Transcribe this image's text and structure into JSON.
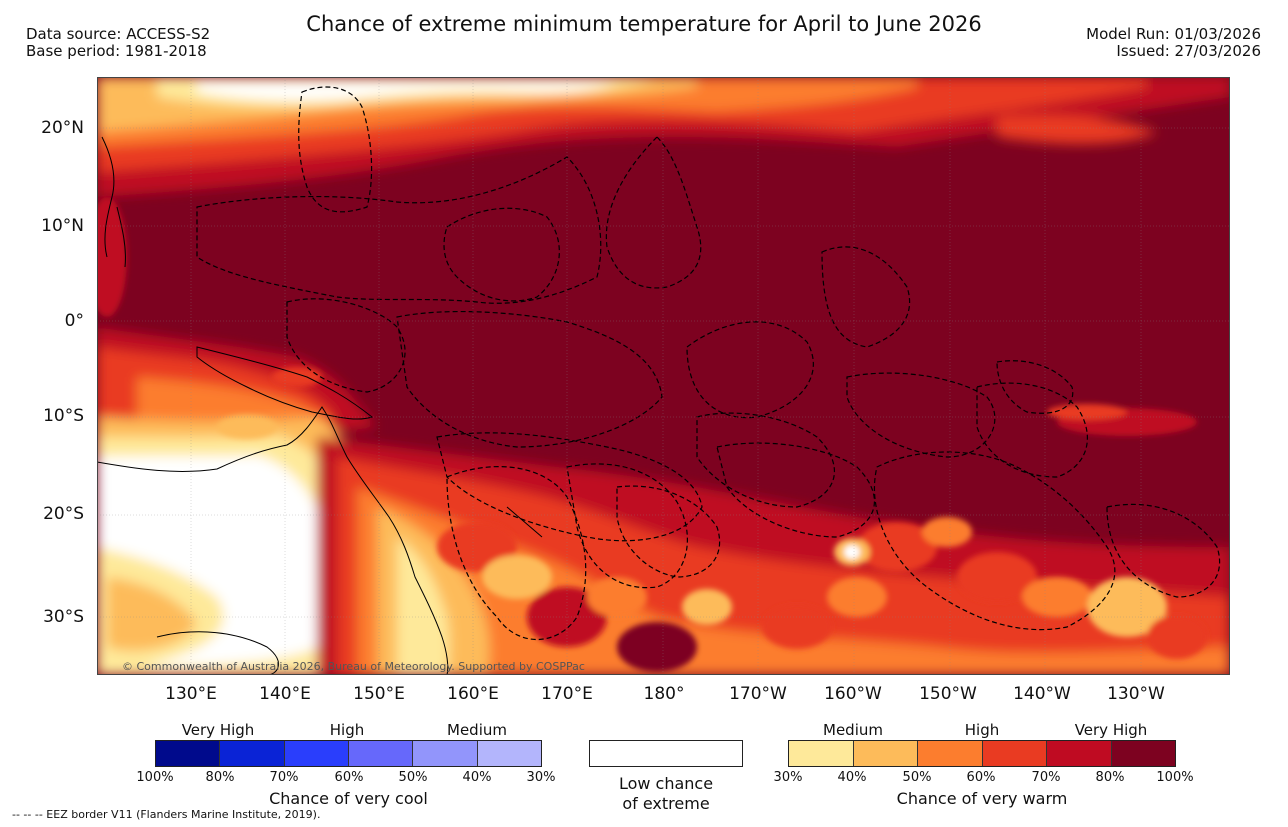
{
  "header": {
    "title": "Chance of extreme minimum temperature for April to June 2026",
    "data_source": "Data source: ACCESS-S2",
    "base_period": "Base period: 1981-2018",
    "model_run": "Model Run: 01/03/2026",
    "issued": "Issued: 27/03/2026"
  },
  "map": {
    "copyright": "© Commonwealth of Australia 2026, Bureau of Meteorology. Supported by COSPPac",
    "lat_labels": [
      "20°N",
      "10°N",
      "0°",
      "10°S",
      "20°S",
      "30°S"
    ],
    "lon_labels": [
      "130°E",
      "140°E",
      "150°E",
      "160°E",
      "170°E",
      "180°",
      "170°W",
      "160°W",
      "150°W",
      "140°W",
      "130°W"
    ]
  },
  "legend": {
    "cool": {
      "levels": [
        "Very High",
        "High",
        "Medium"
      ],
      "ticks": [
        "100%",
        "80%",
        "70%",
        "60%",
        "50%",
        "40%",
        "30%"
      ],
      "caption": "Chance of very cool",
      "colors": [
        "#000a8c",
        "#0a23d6",
        "#2a3efc",
        "#6668fb",
        "#9295fb",
        "#b3b5fc"
      ]
    },
    "low": {
      "caption_line1": "Low chance",
      "caption_line2": "of extreme"
    },
    "warm": {
      "levels": [
        "Medium",
        "High",
        "Very High"
      ],
      "ticks": [
        "30%",
        "40%",
        "50%",
        "60%",
        "70%",
        "80%",
        "100%"
      ],
      "caption": "Chance of very warm",
      "colors": [
        "#fee99a",
        "#fdbb5a",
        "#fc7d2e",
        "#e93b22",
        "#bf0b22",
        "#7d0220"
      ]
    }
  },
  "footnote": "--  --  -- EEZ border V11 (Flanders Marine Institute, 2019)."
}
